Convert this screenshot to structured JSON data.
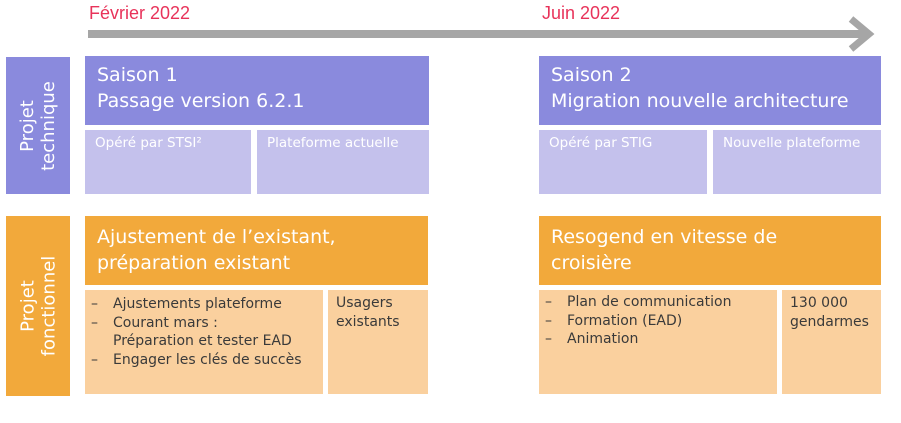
{
  "timeline": {
    "start_label": "Février 2022",
    "end_label": "Juin 2022",
    "arrow_color": "#a6a6a6",
    "date_color": "#e8335a"
  },
  "rows": {
    "technique": {
      "label_lines": [
        "Projet",
        "technique"
      ],
      "color": "#8a8add"
    },
    "fonctionnel": {
      "label_lines": [
        "Projet",
        "fonctionnel"
      ],
      "color": "#f2a93b"
    }
  },
  "seasons": [
    {
      "title_lines": [
        "Saison 1",
        "Passage version 6.2.1"
      ],
      "operator": "Opéré par STSI²",
      "platform": "Plateforme actuelle",
      "goal_lines": [
        "Ajustement de l’existant,",
        "préparation existant"
      ],
      "actions": [
        {
          "lines": [
            "Ajustements plateforme"
          ]
        },
        {
          "lines": [
            "Courant mars :",
            "Préparation et tester EAD"
          ]
        },
        {
          "lines": [
            "Engager les clés de succès"
          ]
        }
      ],
      "audience_lines": [
        "Usagers",
        "existants"
      ]
    },
    {
      "title_lines": [
        "Saison 2",
        "Migration nouvelle architecture"
      ],
      "operator": "Opéré par STIG",
      "platform": "Nouvelle plateforme",
      "goal_lines": [
        "Resogend en vitesse de",
        "croisière"
      ],
      "actions": [
        {
          "lines": [
            "Plan de communication"
          ]
        },
        {
          "lines": [
            "Formation (EAD)"
          ]
        },
        {
          "lines": [
            "Animation"
          ]
        }
      ],
      "audience_lines": [
        "130 000",
        "gendarmes"
      ]
    }
  ],
  "bullet": "–",
  "colors": {
    "tech_header": "#8a8add",
    "tech_sub": "#c4c1ec",
    "func_header": "#f2a93b",
    "func_cell": "#fad09e"
  }
}
